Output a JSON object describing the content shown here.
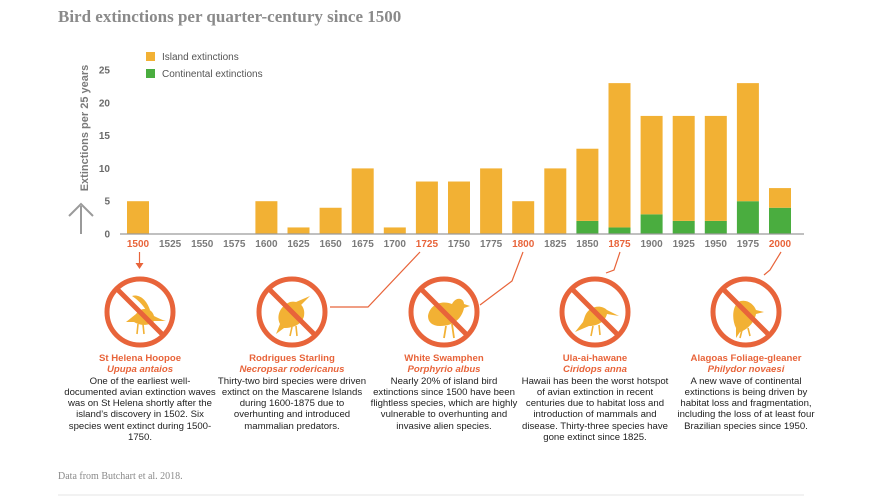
{
  "title": "Bird extinctions per quarter-century since 1500",
  "source": "Data from Butchart et al. 2018.",
  "colors": {
    "island": "#f2b134",
    "continental": "#4aad3f",
    "accent": "#e8643a",
    "axis": "#9a9a9a"
  },
  "chart_data": {
    "type": "bar",
    "stacked": true,
    "title": "Bird extinctions per quarter-century since 1500",
    "xlabel": "",
    "ylabel": "Extinctions per 25 years",
    "ylim": [
      0,
      25
    ],
    "yticks": [
      0,
      5,
      10,
      15,
      20,
      25
    ],
    "grid": false,
    "legend_position": "top-left",
    "categories": [
      "1500",
      "1525",
      "1550",
      "1575",
      "1600",
      "1625",
      "1650",
      "1675",
      "1700",
      "1725",
      "1750",
      "1775",
      "1800",
      "1825",
      "1850",
      "1875",
      "1900",
      "1925",
      "1950",
      "1975",
      "2000"
    ],
    "highlighted_categories": [
      "1500",
      "1725",
      "1800",
      "1875",
      "2000"
    ],
    "series": [
      {
        "name": "Island extinctions",
        "values": [
          5,
          0,
          0,
          0,
          5,
          1,
          4,
          10,
          1,
          8,
          8,
          10,
          5,
          10,
          11,
          22,
          15,
          16,
          16,
          18,
          3
        ]
      },
      {
        "name": "Continental extinctions",
        "values": [
          0,
          0,
          0,
          0,
          0,
          0,
          0,
          0,
          0,
          0,
          0,
          0,
          0,
          0,
          2,
          1,
          3,
          2,
          2,
          5,
          4
        ]
      }
    ]
  },
  "cards": [
    {
      "name": "St Helena Hoopoe",
      "scientific": "Upupa antaios",
      "year": "1500",
      "icon": "hoopoe-icon",
      "desc": "One of the earliest well-documented avian extinction waves was on St Helena shortly after the island’s discovery in 1502. Six species went extinct during 1500-1750."
    },
    {
      "name": "Rodrigues Starling",
      "scientific": "Necropsar rodericanus",
      "year": "1725",
      "icon": "starling-icon",
      "desc": "Thirty-two bird species were driven extinct on the Mascarene Islands during 1600-1875 due to overhunting and introduced mammalian predators."
    },
    {
      "name": "White Swamphen",
      "scientific": "Porphyrio albus",
      "year": "1800",
      "icon": "swamphen-icon",
      "desc": "Nearly 20% of island bird extinctions since 1500 have been flightless species, which are highly vulnerable to overhunting and invasive alien species."
    },
    {
      "name": "Ula-ai-hawane",
      "scientific": "Ciridops anna",
      "year": "1875",
      "icon": "honeycreeper-icon",
      "desc": "Hawaii has been the worst hotspot of avian extinction in recent centuries due to habitat loss and introduction of mammals and disease. Thirty-three species have gone extinct since 1825."
    },
    {
      "name": "Alagoas Foliage-gleaner",
      "scientific": "Philydor novaesi",
      "year": "2000",
      "icon": "foliage-gleaner-icon",
      "desc": "A new wave of continental extinctions is being driven by habitat loss and fragmentation, including the loss of at least four Brazilian species since 1950."
    }
  ]
}
